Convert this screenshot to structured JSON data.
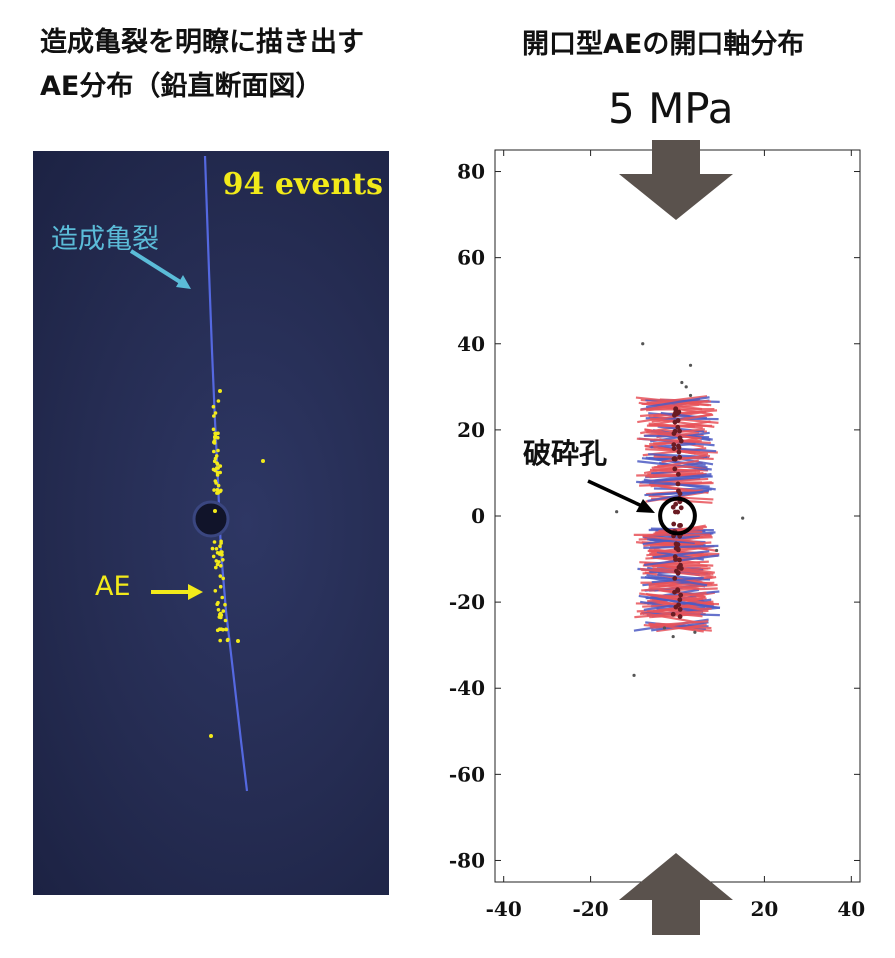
{
  "left_panel": {
    "title_line1": "造成亀裂を明瞭に描き出す",
    "title_line2": "AE分布（鉛直断面図）",
    "events_label": "94 events",
    "crack_label": "造成亀裂",
    "ae_label": "AE",
    "crack_color": "#5a6ff0",
    "ae_color": "#f2ea1a"
  },
  "right_panel": {
    "title": "開口型AEの開口軸分布",
    "pressure_label": "5 MPa",
    "hole_label": "破砕孔",
    "arrow_color": "#5a524d"
  },
  "chart_data": {
    "type": "scatter",
    "title": "",
    "xlabel": "",
    "ylabel": "",
    "xlim": [
      -42,
      42
    ],
    "ylim": [
      -85,
      85
    ],
    "xticks": [
      -40,
      -20,
      0,
      20,
      40
    ],
    "yticks": [
      80,
      60,
      40,
      20,
      0,
      -20,
      -40,
      -60,
      -80
    ],
    "grid": false,
    "series_colors": [
      "#e8535a",
      "#4d5bc4"
    ],
    "points_color": "#555555",
    "hole": {
      "x": 0,
      "y": 0,
      "r": 4
    }
  }
}
